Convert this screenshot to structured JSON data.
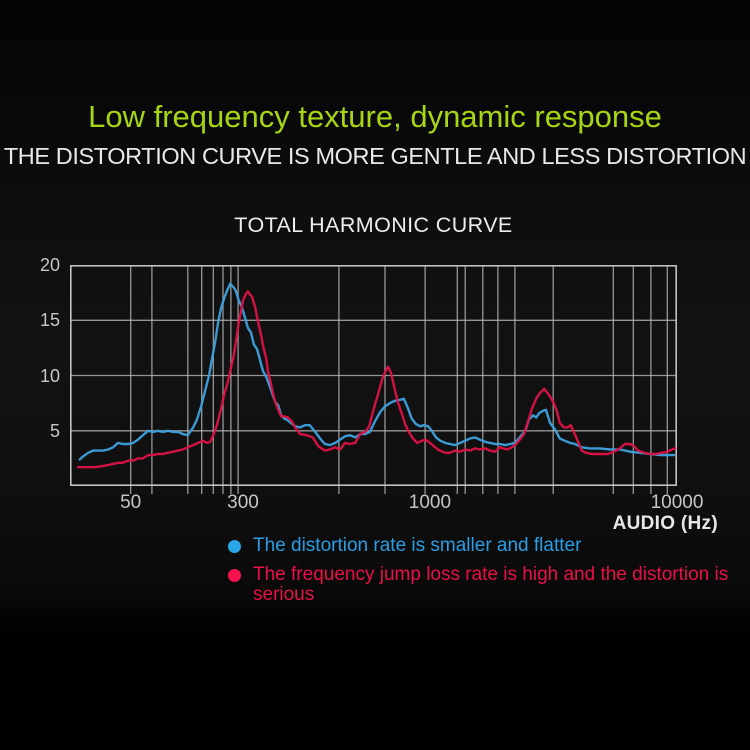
{
  "header": {
    "headline": "Low frequency texture, dynamic response",
    "headline_color": "#a6d513",
    "subheadline": "THE DISTORTION CURVE IS MORE GENTLE AND LESS DISTORTION",
    "subheadline_color": "#e9e9e9"
  },
  "legend": {
    "items": [
      {
        "label": "The distortion rate is smaller and flatter",
        "color": "#2aa7e8",
        "text_color": "#2b9de4"
      },
      {
        "label": "The frequency jump loss rate is high and the distortion is serious",
        "color": "#f7114e",
        "text_color": "#ea1047"
      }
    ]
  },
  "chart_data": {
    "type": "line",
    "title": "TOTAL HARMONIC CURVE",
    "grid": true,
    "grid_color": "#b8b8b8",
    "border_color": "#c2c2c2",
    "x_axis": {
      "label": "AUDIO (Hz)",
      "scale": "logarithmic (stylized)",
      "ticks": [
        {
          "label": "50",
          "pos": 10.0
        },
        {
          "label": "300",
          "pos": 28.5
        },
        {
          "label": "1000",
          "pos": 59.3
        },
        {
          "label": "10000",
          "pos": 100
        }
      ],
      "grid_pos": [
        10.0,
        13.5,
        19.4,
        21.7,
        23.6,
        25.2,
        26.5,
        27.7,
        44.3,
        51.9,
        58.5,
        63.8,
        65.1,
        68.0,
        70.5,
        73.3,
        79.6,
        89.5,
        92.8,
        95.7,
        98.4
      ]
    },
    "y_axis": {
      "range": [
        0,
        20
      ],
      "tick_values": [
        5,
        10,
        15,
        20
      ],
      "grid_values": [
        5,
        10,
        15
      ]
    },
    "series": [
      {
        "name": "distortion-rate-smaller-flatter",
        "color": "#3da0dc",
        "points": [
          [
            1.6,
            2.4
          ],
          [
            2.2,
            2.7
          ],
          [
            3.0,
            3.0
          ],
          [
            3.8,
            3.2
          ],
          [
            5.4,
            3.2
          ],
          [
            6.3,
            3.3
          ],
          [
            7.1,
            3.5
          ],
          [
            7.9,
            3.9
          ],
          [
            8.7,
            3.8
          ],
          [
            9.6,
            3.8
          ],
          [
            10.4,
            3.9
          ],
          [
            11.2,
            4.2
          ],
          [
            12.0,
            4.6
          ],
          [
            12.9,
            5.0
          ],
          [
            13.7,
            4.9
          ],
          [
            14.5,
            5.0
          ],
          [
            15.3,
            4.9
          ],
          [
            16.1,
            5.0
          ],
          [
            17.0,
            4.9
          ],
          [
            17.8,
            4.9
          ],
          [
            18.6,
            4.7
          ],
          [
            19.4,
            4.6
          ],
          [
            20.3,
            5.3
          ],
          [
            20.9,
            6.0
          ],
          [
            21.6,
            7.2
          ],
          [
            22.2,
            8.5
          ],
          [
            22.9,
            10.0
          ],
          [
            23.4,
            11.5
          ],
          [
            23.9,
            13.0
          ],
          [
            24.4,
            14.8
          ],
          [
            24.9,
            16.1
          ],
          [
            25.4,
            17.0
          ],
          [
            25.9,
            17.7
          ],
          [
            26.4,
            18.3
          ],
          [
            26.9,
            18.0
          ],
          [
            27.3,
            17.7
          ],
          [
            27.8,
            16.8
          ],
          [
            28.3,
            16.2
          ],
          [
            28.8,
            15.3
          ],
          [
            29.3,
            14.3
          ],
          [
            29.8,
            13.9
          ],
          [
            30.3,
            12.8
          ],
          [
            30.8,
            12.4
          ],
          [
            31.3,
            11.4
          ],
          [
            31.8,
            10.4
          ],
          [
            32.3,
            9.9
          ],
          [
            32.8,
            9.2
          ],
          [
            33.3,
            8.4
          ],
          [
            33.8,
            7.6
          ],
          [
            34.3,
            7.3
          ],
          [
            34.8,
            6.4
          ],
          [
            35.3,
            6.1
          ],
          [
            35.7,
            6.0
          ],
          [
            36.2,
            5.8
          ],
          [
            37.1,
            5.4
          ],
          [
            37.9,
            5.3
          ],
          [
            38.7,
            5.5
          ],
          [
            39.5,
            5.5
          ],
          [
            40.4,
            4.9
          ],
          [
            41.2,
            4.3
          ],
          [
            42.0,
            3.8
          ],
          [
            42.8,
            3.7
          ],
          [
            43.7,
            3.9
          ],
          [
            44.5,
            4.2
          ],
          [
            45.3,
            4.5
          ],
          [
            46.1,
            4.6
          ],
          [
            47.0,
            4.4
          ],
          [
            47.8,
            4.7
          ],
          [
            48.6,
            4.7
          ],
          [
            49.4,
            4.9
          ],
          [
            50.2,
            5.8
          ],
          [
            51.1,
            6.7
          ],
          [
            51.9,
            7.2
          ],
          [
            52.7,
            7.5
          ],
          [
            53.5,
            7.7
          ],
          [
            54.4,
            7.8
          ],
          [
            55.0,
            7.9
          ],
          [
            55.7,
            7.0
          ],
          [
            56.3,
            6.1
          ],
          [
            57.0,
            5.6
          ],
          [
            57.7,
            5.4
          ],
          [
            58.3,
            5.5
          ],
          [
            59.0,
            5.4
          ],
          [
            59.6,
            5.0
          ],
          [
            60.3,
            4.4
          ],
          [
            61.0,
            4.1
          ],
          [
            61.8,
            3.9
          ],
          [
            62.6,
            3.8
          ],
          [
            63.4,
            3.7
          ],
          [
            64.3,
            3.9
          ],
          [
            65.1,
            4.1
          ],
          [
            65.9,
            4.3
          ],
          [
            66.7,
            4.4
          ],
          [
            67.5,
            4.2
          ],
          [
            68.4,
            4.0
          ],
          [
            69.2,
            3.9
          ],
          [
            70.0,
            3.8
          ],
          [
            70.8,
            3.8
          ],
          [
            71.7,
            3.7
          ],
          [
            72.5,
            3.8
          ],
          [
            73.3,
            3.9
          ],
          [
            74.1,
            4.4
          ],
          [
            75.0,
            5.0
          ],
          [
            75.6,
            6.0
          ],
          [
            76.3,
            6.4
          ],
          [
            76.8,
            6.2
          ],
          [
            77.3,
            6.6
          ],
          [
            77.9,
            6.8
          ],
          [
            78.4,
            6.9
          ],
          [
            79.1,
            5.7
          ],
          [
            79.9,
            5.1
          ],
          [
            80.7,
            4.3
          ],
          [
            81.5,
            4.1
          ],
          [
            82.4,
            3.9
          ],
          [
            83.2,
            3.8
          ],
          [
            84.3,
            3.5
          ],
          [
            85.7,
            3.4
          ],
          [
            87.3,
            3.4
          ],
          [
            89.0,
            3.3
          ],
          [
            90.6,
            3.3
          ],
          [
            92.3,
            3.1
          ],
          [
            93.9,
            3.0
          ],
          [
            95.6,
            2.9
          ],
          [
            97.2,
            2.8
          ],
          [
            98.5,
            2.8
          ],
          [
            99.5,
            2.8
          ]
        ]
      },
      {
        "name": "frequency-jump-loss-high",
        "color": "#dc1245",
        "points": [
          [
            1.3,
            1.7
          ],
          [
            2.5,
            1.7
          ],
          [
            4.1,
            1.7
          ],
          [
            5.4,
            1.8
          ],
          [
            6.3,
            1.9
          ],
          [
            7.1,
            2.0
          ],
          [
            7.9,
            2.1
          ],
          [
            8.7,
            2.1
          ],
          [
            9.6,
            2.3
          ],
          [
            10.4,
            2.3
          ],
          [
            11.2,
            2.5
          ],
          [
            12.0,
            2.5
          ],
          [
            12.9,
            2.8
          ],
          [
            13.7,
            2.8
          ],
          [
            14.5,
            2.9
          ],
          [
            15.3,
            2.9
          ],
          [
            16.1,
            3.0
          ],
          [
            17.0,
            3.1
          ],
          [
            17.8,
            3.2
          ],
          [
            18.6,
            3.3
          ],
          [
            19.4,
            3.5
          ],
          [
            20.3,
            3.7
          ],
          [
            21.1,
            3.9
          ],
          [
            21.9,
            4.1
          ],
          [
            22.6,
            3.9
          ],
          [
            23.1,
            4.0
          ],
          [
            23.6,
            4.6
          ],
          [
            24.2,
            5.5
          ],
          [
            24.9,
            7.0
          ],
          [
            25.4,
            8.3
          ],
          [
            25.9,
            9.2
          ],
          [
            26.4,
            10.4
          ],
          [
            26.9,
            11.6
          ],
          [
            27.3,
            12.9
          ],
          [
            27.8,
            14.8
          ],
          [
            28.2,
            15.9
          ],
          [
            28.5,
            16.8
          ],
          [
            29.0,
            17.4
          ],
          [
            29.3,
            17.6
          ],
          [
            29.7,
            17.3
          ],
          [
            30.0,
            17.1
          ],
          [
            30.5,
            16.2
          ],
          [
            31.0,
            14.8
          ],
          [
            31.5,
            13.6
          ],
          [
            31.8,
            12.7
          ],
          [
            32.3,
            11.6
          ],
          [
            32.6,
            10.4
          ],
          [
            33.1,
            9.3
          ],
          [
            33.4,
            8.5
          ],
          [
            33.8,
            7.6
          ],
          [
            34.3,
            6.9
          ],
          [
            34.8,
            6.3
          ],
          [
            35.4,
            6.3
          ],
          [
            35.9,
            6.2
          ],
          [
            36.6,
            5.8
          ],
          [
            37.2,
            5.2
          ],
          [
            37.9,
            4.7
          ],
          [
            39.0,
            4.6
          ],
          [
            40.0,
            4.4
          ],
          [
            40.9,
            3.6
          ],
          [
            42.0,
            3.2
          ],
          [
            42.8,
            3.3
          ],
          [
            43.7,
            3.5
          ],
          [
            44.5,
            3.3
          ],
          [
            45.3,
            3.9
          ],
          [
            46.1,
            3.8
          ],
          [
            47.0,
            3.9
          ],
          [
            47.8,
            4.7
          ],
          [
            48.6,
            4.9
          ],
          [
            49.3,
            5.4
          ],
          [
            49.8,
            6.5
          ],
          [
            50.2,
            7.3
          ],
          [
            50.7,
            8.2
          ],
          [
            51.4,
            9.6
          ],
          [
            51.9,
            10.3
          ],
          [
            52.4,
            10.8
          ],
          [
            52.9,
            10.2
          ],
          [
            53.4,
            9.0
          ],
          [
            54.0,
            7.6
          ],
          [
            54.7,
            6.5
          ],
          [
            55.2,
            5.6
          ],
          [
            55.7,
            5.0
          ],
          [
            56.5,
            4.3
          ],
          [
            57.2,
            3.9
          ],
          [
            58.0,
            4.1
          ],
          [
            58.6,
            4.2
          ],
          [
            59.3,
            3.9
          ],
          [
            60.6,
            3.3
          ],
          [
            61.8,
            3.0
          ],
          [
            62.6,
            3.0
          ],
          [
            63.4,
            3.2
          ],
          [
            64.3,
            3.1
          ],
          [
            65.1,
            3.3
          ],
          [
            65.9,
            3.2
          ],
          [
            66.7,
            3.4
          ],
          [
            67.5,
            3.3
          ],
          [
            68.4,
            3.4
          ],
          [
            69.2,
            3.2
          ],
          [
            70.0,
            3.1
          ],
          [
            70.8,
            3.5
          ],
          [
            72.0,
            3.3
          ],
          [
            72.8,
            3.5
          ],
          [
            73.5,
            3.8
          ],
          [
            74.1,
            4.2
          ],
          [
            74.8,
            4.7
          ],
          [
            75.5,
            5.9
          ],
          [
            76.1,
            7.0
          ],
          [
            76.8,
            7.9
          ],
          [
            77.4,
            8.4
          ],
          [
            78.1,
            8.8
          ],
          [
            78.7,
            8.4
          ],
          [
            79.2,
            8.0
          ],
          [
            79.7,
            7.5
          ],
          [
            80.2,
            6.8
          ],
          [
            80.7,
            5.7
          ],
          [
            81.4,
            5.3
          ],
          [
            82.0,
            5.3
          ],
          [
            82.5,
            5.5
          ],
          [
            83.0,
            4.9
          ],
          [
            83.7,
            4.0
          ],
          [
            84.3,
            3.2
          ],
          [
            85.0,
            3.0
          ],
          [
            86.0,
            2.9
          ],
          [
            87.3,
            2.9
          ],
          [
            88.6,
            2.9
          ],
          [
            89.6,
            3.1
          ],
          [
            90.6,
            3.4
          ],
          [
            91.4,
            3.8
          ],
          [
            92.3,
            3.8
          ],
          [
            92.9,
            3.6
          ],
          [
            93.6,
            3.2
          ],
          [
            94.6,
            3.0
          ],
          [
            95.6,
            2.9
          ],
          [
            96.5,
            2.9
          ],
          [
            97.5,
            3.0
          ],
          [
            98.4,
            3.1
          ],
          [
            99.2,
            3.3
          ],
          [
            99.7,
            3.4
          ]
        ]
      }
    ]
  }
}
